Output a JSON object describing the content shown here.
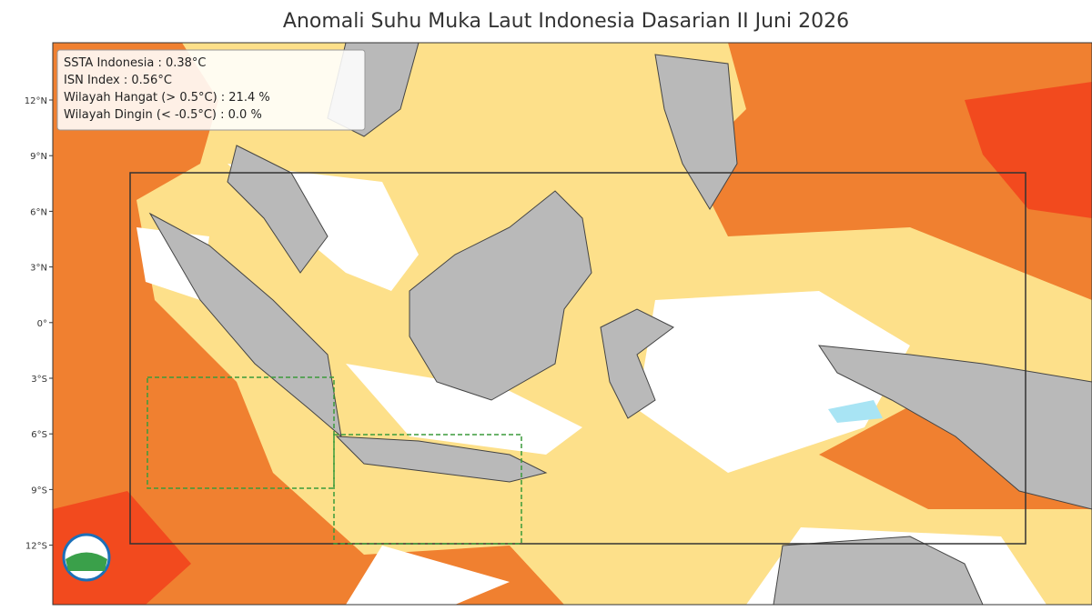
{
  "header": {
    "title": "Anomali Suhu Muka Laut Indonesia Dasarian II Juni 2026"
  },
  "info_box": {
    "lines": [
      "SSTA Indonesia : 0.38°C",
      "ISN Index : 0.56°C",
      "Wilayah Hangat (> 0.5°C) : 21.4 %",
      "Wilayah Dingin (< -0.5°C) : 0.0 %"
    ]
  },
  "map": {
    "lat_labels": [
      "12°N",
      "9°N",
      "6°N",
      "3°N",
      "0°",
      "3°S",
      "6°S",
      "9°S",
      "12°S"
    ]
  }
}
